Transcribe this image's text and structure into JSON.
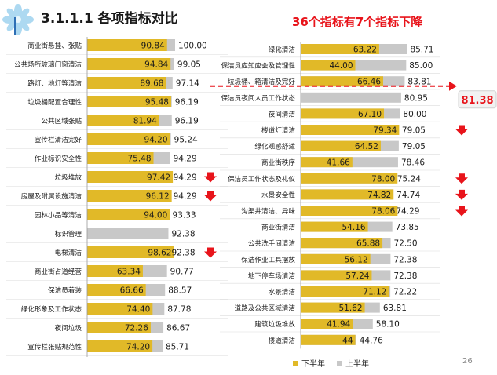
{
  "slide": {
    "title": "3.1.1.1  各项指标对比",
    "headline": "36个指标有7个指标下降",
    "page_number": "26",
    "avg_label": "81.38"
  },
  "colors": {
    "second_half": "#e1b928",
    "first_half": "#c8c8c8",
    "decline_arrow": "#e8141b",
    "headline": "#e8141b",
    "avg_line": "#e8141b"
  },
  "chart_data": [
    {
      "type": "bar",
      "orientation": "horizontal",
      "categories": [
        "商业街悬挂、张贴",
        "公共场所玻璃门窗清洁",
        "路灯、地灯等清洁",
        "垃圾桶配置合理性",
        "公共区域张贴",
        "宣传栏清洁完好",
        "作业标识安全性",
        "垃圾堆放",
        "房屋及附属设施清洁",
        "园林小品等清洁",
        "标识管理",
        "电梯清洁",
        "商业街占道经营",
        "保洁员着装",
        "绿化形象及工作状态",
        "夜间垃圾",
        "宣传栏张贴规范性"
      ],
      "series": [
        {
          "name": "下半年",
          "values": [
            90.84,
            94.84,
            89.68,
            95.48,
            81.94,
            94.2,
            75.48,
            97.42,
            96.12,
            94.0,
            null,
            98.62,
            63.34,
            66.66,
            74.4,
            72.26,
            74.2
          ]
        },
        {
          "name": "上半年",
          "values": [
            100.0,
            99.05,
            97.14,
            96.19,
            96.19,
            95.24,
            94.29,
            94.29,
            94.29,
            93.33,
            92.38,
            92.38,
            90.77,
            88.57,
            87.78,
            86.67,
            85.71
          ]
        }
      ],
      "point_labels": {
        "下半年": [
          "90.84",
          "94.84",
          "89.68",
          "95.48",
          "81.94",
          "94.20",
          "75.48",
          "97.42",
          "96.12",
          "94.00",
          "",
          "98.62",
          "63.34",
          "66.66",
          "74.40",
          "72.26",
          "74.20"
        ],
        "上半年": [
          "100.00",
          "99.05",
          "97.14",
          "96.19",
          "96.19",
          "95.24",
          "94.29",
          "94.29",
          "94.29",
          "93.33",
          "92.38",
          "92.38",
          "90.77",
          "88.57",
          "87.78",
          "86.67",
          "85.71"
        ]
      },
      "declined": [
        false,
        false,
        false,
        false,
        false,
        false,
        false,
        true,
        true,
        false,
        false,
        true,
        false,
        false,
        false,
        false,
        false
      ],
      "xlim": [
        0,
        100
      ]
    },
    {
      "type": "bar",
      "orientation": "horizontal",
      "categories": [
        "绿化清洁",
        "保洁员应知应会及管理性",
        "垃圾桶、箱清洁及完好",
        "保洁员夜间人员工作状态",
        "夜间清洁",
        "楼道灯清洁",
        "绿化观感舒适",
        "商业街秩序",
        "保洁员工作状态及礼仪",
        "水景安全性",
        "沟渠井清洁、异味",
        "商业街清洁",
        "公共洗手间清洁",
        "保洁作业工具摆放",
        "地下停车场清洁",
        "水景清洁",
        "道路及公共区域清洁",
        "建筑垃圾堆放",
        "楼道清洁"
      ],
      "series": [
        {
          "name": "下半年",
          "values": [
            63.22,
            44.0,
            66.46,
            null,
            67.1,
            79.34,
            64.52,
            41.66,
            78.0,
            74.82,
            78.06,
            54.16,
            65.88,
            56.12,
            57.24,
            71.12,
            51.62,
            41.94,
            44
          ]
        },
        {
          "name": "上半年",
          "values": [
            85.71,
            85.0,
            83.81,
            80.95,
            80.0,
            79.05,
            79.05,
            78.46,
            75.24,
            74.74,
            74.29,
            73.85,
            72.5,
            72.38,
            72.38,
            72.22,
            63.81,
            58.1,
            44.76
          ]
        }
      ],
      "point_labels": {
        "下半年": [
          "63.22",
          "44.00",
          "66.46",
          "",
          "67.10",
          "79.34",
          "64.52",
          "41.66",
          "78.00",
          "74.82",
          "78.06",
          "54.16",
          "65.88",
          "56.12",
          "57.24",
          "71.12",
          "51.62",
          "41.94",
          "44"
        ],
        "上半年": [
          "85.71",
          "85.00",
          "83.81",
          "80.95",
          "80.00",
          "79.05",
          "79.05",
          "78.46",
          "75.24",
          "74.74",
          "74.29",
          "73.85",
          "72.50",
          "72.38",
          "72.38",
          "72.22",
          "63.81",
          "58.10",
          "44.76"
        ]
      },
      "declined": [
        false,
        false,
        false,
        false,
        false,
        true,
        false,
        false,
        true,
        true,
        true,
        false,
        false,
        false,
        false,
        false,
        false,
        false,
        false
      ],
      "average": 81.38,
      "xlim": [
        0,
        100
      ]
    }
  ]
}
